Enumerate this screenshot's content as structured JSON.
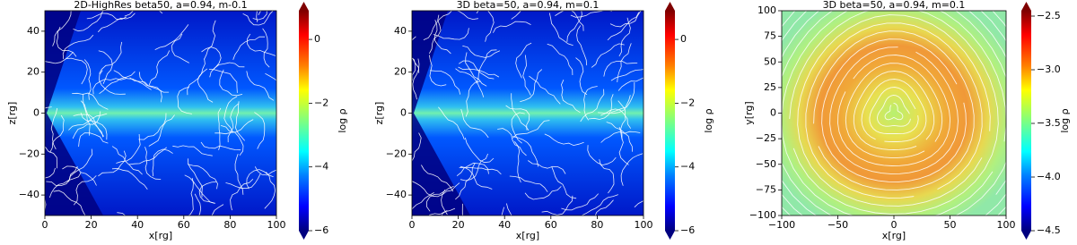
{
  "chart_data": [
    {
      "type": "heatmap",
      "title": "2D-HighRes beta50, a=0.94, m-0.1",
      "xlabel": "x[rg]",
      "ylabel": "z[rg]",
      "xlim": [
        0,
        100
      ],
      "ylim": [
        -50,
        50
      ],
      "xticks": [
        0,
        20,
        40,
        60,
        80,
        100
      ],
      "yticks": [
        {
          "value": -40,
          "label": "−40"
        },
        {
          "value": -20,
          "label": "−20"
        },
        0,
        20,
        40
      ],
      "colormap": "jet",
      "colorbar": {
        "label": "log ρ",
        "lim": [
          -6,
          0.9
        ],
        "ticks": [
          {
            "value": -6,
            "label": "−6"
          },
          {
            "value": -4,
            "label": "−4"
          },
          {
            "value": -2,
            "label": "−2"
          },
          0
        ]
      }
    },
    {
      "type": "heatmap",
      "title": "3D beta=50, a=0.94, m=0.1",
      "xlabel": "x[rg]",
      "ylabel": "z[rg]",
      "xlim": [
        0,
        100
      ],
      "ylim": [
        -50,
        50
      ],
      "xticks": [
        0,
        20,
        40,
        60,
        80,
        100
      ],
      "yticks": [
        {
          "value": -40,
          "label": "−40"
        },
        {
          "value": -20,
          "label": "−20"
        },
        0,
        20,
        40
      ],
      "colormap": "jet",
      "colorbar": {
        "label": "log ρ",
        "lim": [
          -6,
          0.9
        ],
        "ticks": [
          {
            "value": -6,
            "label": "−6"
          },
          {
            "value": -4,
            "label": "−4"
          },
          {
            "value": -2,
            "label": "−2"
          },
          0
        ]
      }
    },
    {
      "type": "heatmap",
      "title": "3D beta=50, a=0.94, m=0.1",
      "xlabel": "x[rg]",
      "ylabel": "y[rg]",
      "xlim": [
        -100,
        100
      ],
      "ylim": [
        -100,
        100
      ],
      "xticks": [
        {
          "value": -100,
          "label": "−100"
        },
        {
          "value": -50,
          "label": "−50"
        },
        0,
        50,
        100
      ],
      "yticks": [
        {
          "value": -100,
          "label": "−100"
        },
        {
          "value": -75,
          "label": "−75"
        },
        {
          "value": -50,
          "label": "−50"
        },
        {
          "value": -25,
          "label": "−25"
        },
        0,
        25,
        50,
        75,
        100
      ],
      "colormap": "jet",
      "colorbar": {
        "label": "log ρ",
        "lim": [
          -4.5,
          -2.45
        ],
        "ticks": [
          {
            "value": -4.5,
            "label": "−4.5"
          },
          {
            "value": -4.0,
            "label": "−4.0"
          },
          {
            "value": -3.5,
            "label": "−3.5"
          },
          {
            "value": -3.0,
            "label": "−3.0"
          },
          {
            "value": -2.5,
            "label": "−2.5"
          }
        ]
      }
    }
  ]
}
